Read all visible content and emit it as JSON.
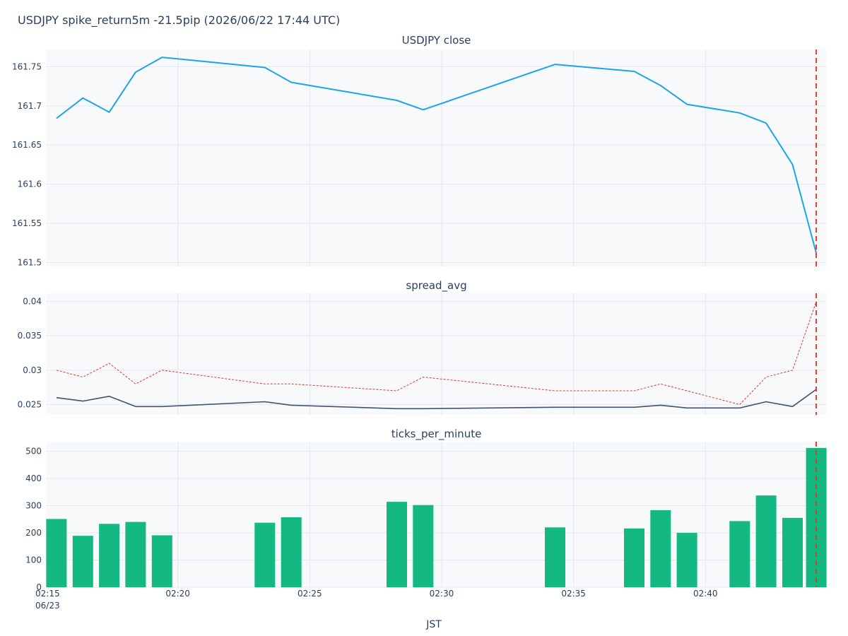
{
  "figure_title": "USDJPY spike_return5m -21.5pip (2026/06/22 17:44 UTC)",
  "x_axis": {
    "title": "JST",
    "tick_labels": [
      "02:15",
      "02:20",
      "02:25",
      "02:30",
      "02:35",
      "02:40"
    ],
    "tick_minutes": [
      15,
      20,
      25,
      30,
      35,
      40
    ],
    "date_label": "06/23",
    "range_minutes": [
      15,
      44.6
    ]
  },
  "colors": {
    "plot_bg": "#f8f9fb",
    "grid": "#e4e8f0",
    "close_line": "#1ca5e6",
    "spread_max": "#e03a2e",
    "spread_avg": "#43536b",
    "ticks_bar": "#13b981",
    "event_line": "#e03a2e"
  },
  "event_minute": 44.2,
  "chart_data": [
    {
      "type": "line",
      "title": "USDJPY close",
      "ylim": [
        161.495,
        161.772
      ],
      "yticks": [
        161.5,
        161.55,
        161.6,
        161.65,
        161.7,
        161.75
      ],
      "ytick_labels": [
        "161.5",
        "161.55",
        "161.6",
        "161.65",
        "161.7",
        "161.75"
      ],
      "series": [
        {
          "x": [
            15.4,
            16.4,
            17.4,
            18.4,
            19.4,
            23.3,
            24.3,
            28.3,
            29.3,
            34.3,
            37.3,
            38.3,
            39.3,
            41.3,
            42.3,
            43.3,
            44.2
          ],
          "values": [
            161.684,
            161.71,
            161.692,
            161.743,
            161.762,
            161.749,
            161.73,
            161.707,
            161.695,
            161.753,
            161.744,
            161.726,
            161.702,
            161.691,
            161.678,
            161.625,
            161.512
          ]
        }
      ]
    },
    {
      "type": "line",
      "title": "spread_avg",
      "ylim": [
        0.0235,
        0.0412
      ],
      "yticks": [
        0.025,
        0.03,
        0.035,
        0.04
      ],
      "ytick_labels": [
        "0.025",
        "0.03",
        "0.035",
        "0.04"
      ],
      "series": [
        {
          "style": "dotted",
          "x": [
            15.4,
            16.4,
            17.4,
            18.4,
            19.4,
            23.3,
            24.3,
            28.3,
            29.3,
            34.3,
            37.3,
            38.3,
            39.3,
            41.3,
            42.3,
            43.3,
            44.2
          ],
          "values": [
            0.03,
            0.029,
            0.031,
            0.028,
            0.03,
            0.028,
            0.028,
            0.027,
            0.029,
            0.027,
            0.027,
            0.028,
            0.027,
            0.025,
            0.029,
            0.03,
            0.04
          ]
        },
        {
          "style": "solid",
          "x": [
            15.4,
            16.4,
            17.4,
            18.4,
            19.4,
            23.3,
            24.3,
            28.3,
            29.3,
            34.3,
            37.3,
            38.3,
            39.3,
            41.3,
            42.3,
            43.3,
            44.2
          ],
          "values": [
            0.026,
            0.0255,
            0.0262,
            0.0247,
            0.0247,
            0.0254,
            0.0249,
            0.0244,
            0.0244,
            0.0246,
            0.0246,
            0.0249,
            0.0245,
            0.0245,
            0.0254,
            0.0247,
            0.0272
          ]
        }
      ]
    },
    {
      "type": "bar",
      "title": "ticks_per_minute",
      "ylim": [
        0,
        535
      ],
      "yticks": [
        0,
        100,
        200,
        300,
        400,
        500
      ],
      "ytick_labels": [
        "0",
        "100",
        "200",
        "300",
        "400",
        "500"
      ],
      "series": [
        {
          "x": [
            15.4,
            16.4,
            17.4,
            18.4,
            19.4,
            23.3,
            24.3,
            28.3,
            29.3,
            34.3,
            37.3,
            38.3,
            39.3,
            41.3,
            42.3,
            43.3,
            44.2
          ],
          "values": [
            251,
            189,
            233,
            240,
            191,
            237,
            257,
            314,
            302,
            220,
            216,
            283,
            200,
            243,
            337,
            255,
            512
          ]
        }
      ]
    }
  ]
}
